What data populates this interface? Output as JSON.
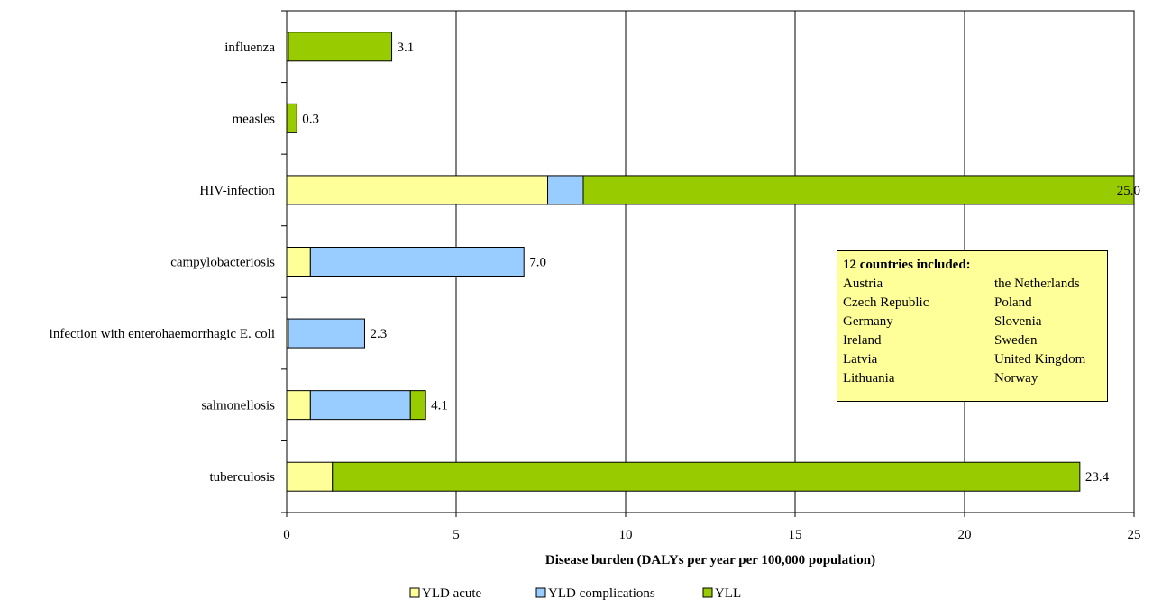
{
  "chart_data": {
    "type": "bar",
    "orientation": "horizontal",
    "stacked": true,
    "categories": [
      "tuberculosis",
      "salmonellosis",
      "infection with enterohaemorrhagic E. coli",
      "campylobacteriosis",
      "HIV-infection",
      "measles",
      "influenza"
    ],
    "series": [
      {
        "name": "YLD acute",
        "color": "#ffff99",
        "values": [
          1.35,
          0.7,
          0.05,
          0.7,
          7.7,
          0.0,
          0.05
        ]
      },
      {
        "name": "YLD complications",
        "color": "#99ccff",
        "values": [
          0.0,
          2.95,
          2.25,
          6.3,
          1.05,
          0.0,
          0.0
        ]
      },
      {
        "name": "YLL",
        "color": "#99cc00",
        "values": [
          22.05,
          0.45,
          0.0,
          0.0,
          16.25,
          0.3,
          3.05
        ]
      }
    ],
    "totals": [
      "23.4",
      "4.1",
      "2.3",
      "7.0",
      "25.0",
      "0.3",
      "3.1"
    ],
    "xlabel": "Disease burden (DALYs per year per 100,000 population)",
    "xlim": [
      0,
      25
    ],
    "xticks": [
      "0",
      "5",
      "10",
      "15",
      "20",
      "25"
    ],
    "grid": true,
    "legend_position": "bottom"
  },
  "info_box": {
    "title": "12 countries included:",
    "rows": [
      {
        "left": "Austria",
        "right": "the Netherlands"
      },
      {
        "left": "Czech Republic",
        "right": "Poland"
      },
      {
        "left": "Germany",
        "right": "Slovenia"
      },
      {
        "left": "Ireland",
        "right": "Sweden"
      },
      {
        "left": "Latvia",
        "right": "United Kingdom"
      },
      {
        "left": "Lithuania",
        "right": "Norway"
      }
    ]
  }
}
